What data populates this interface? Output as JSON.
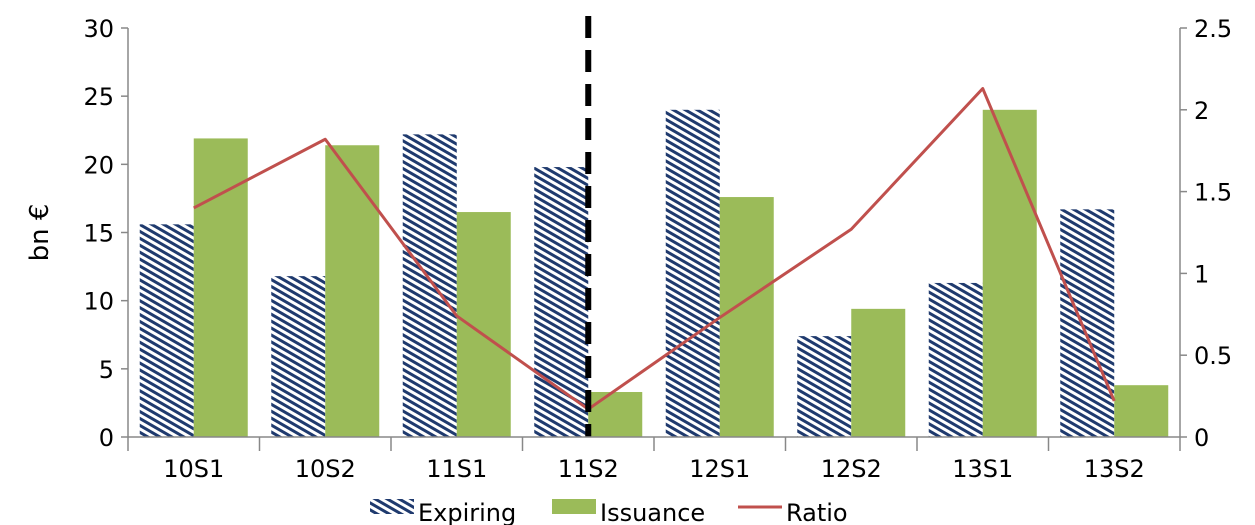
{
  "chart_data": {
    "type": "bar",
    "categories": [
      "10S1",
      "10S2",
      "11S1",
      "11S2",
      "12S1",
      "12S2",
      "13S1",
      "13S2"
    ],
    "series": [
      {
        "name": "Expiring",
        "type": "bar",
        "axis": "left",
        "values": [
          15.6,
          11.8,
          22.2,
          19.8,
          24.0,
          7.4,
          11.3,
          16.7
        ]
      },
      {
        "name": "Issuance",
        "type": "bar",
        "axis": "left",
        "values": [
          21.9,
          21.4,
          16.5,
          3.3,
          17.6,
          9.4,
          24.0,
          3.8
        ]
      },
      {
        "name": "Ratio",
        "type": "line",
        "axis": "right",
        "values": [
          1.4,
          1.82,
          0.74,
          0.17,
          0.73,
          1.27,
          2.13,
          0.22
        ]
      }
    ],
    "ylabel": "bn €",
    "ylim": [
      0,
      30
    ],
    "yticks": [
      "0",
      "5",
      "10",
      "15",
      "20",
      "25",
      "30"
    ],
    "y2lim": [
      0,
      2.5
    ],
    "y2ticks": [
      "0",
      "0.5",
      "1",
      "1.5",
      "2",
      "2.5"
    ],
    "grid": false,
    "legend_position": "bottom",
    "annotations": [
      {
        "type": "vertical-dashed-line",
        "at_category_index": 3
      }
    ],
    "colors": {
      "expiring": "#1f3a6e",
      "issuance": "#9bbb59",
      "ratio": "#c0504d",
      "marker_line": "#000000"
    }
  }
}
